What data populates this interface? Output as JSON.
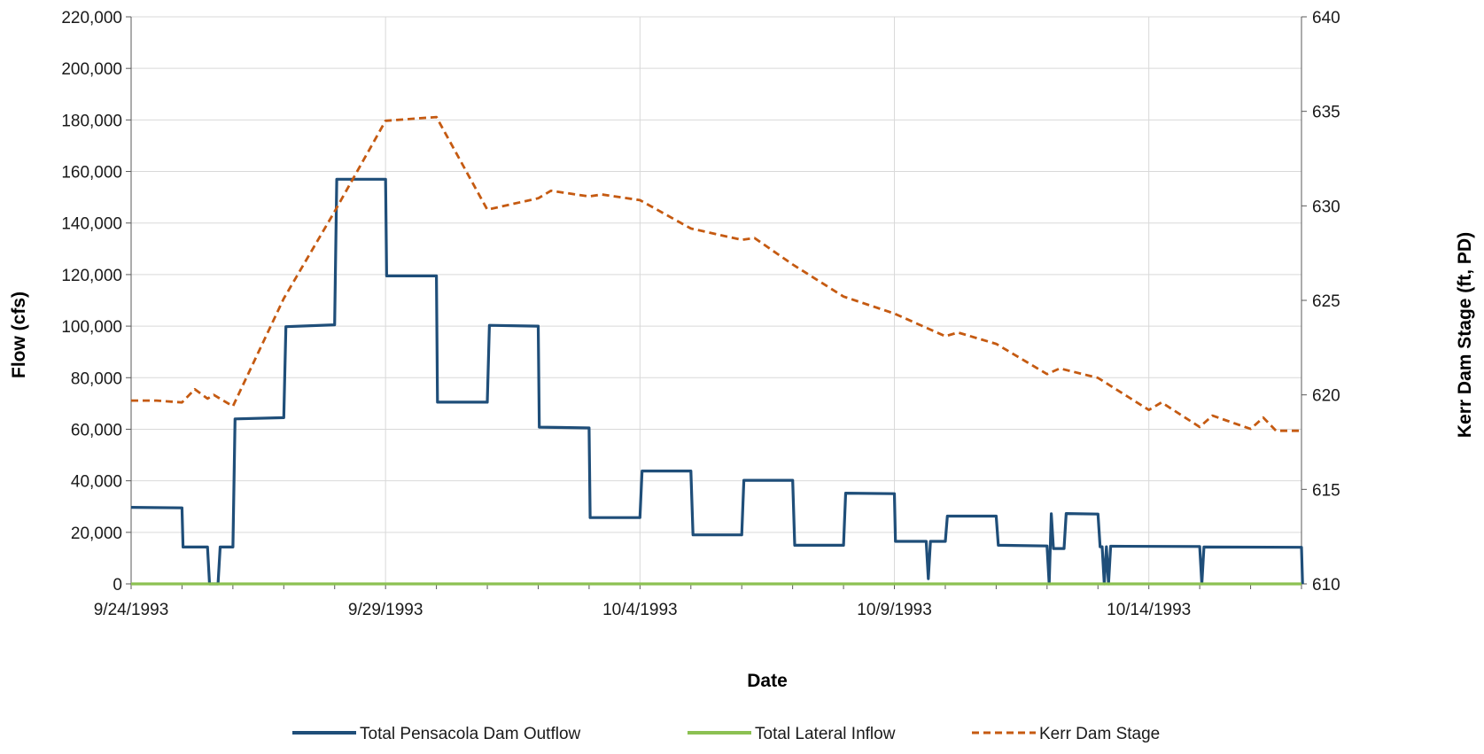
{
  "colors": {
    "outflow": "#1f4e79",
    "lateral": "#8cc152",
    "stage": "#c55a11",
    "grid": "#d9d9d9",
    "axis": "#595959"
  },
  "chart_data": {
    "type": "line",
    "xlabel": "Date",
    "ylabel_left": "Flow (cfs)",
    "ylabel_right": "Kerr Dam Stage (ft, PD)",
    "xlim": [
      "9/24/1993",
      "10/17/1993"
    ],
    "ylim_left": [
      0,
      220000
    ],
    "ylim_right": [
      610,
      640
    ],
    "x_tick_labels": [
      "9/24/1993",
      "9/29/1993",
      "10/4/1993",
      "10/9/1993",
      "10/14/1993"
    ],
    "x_tick_day_offsets_note": "date axis, major labels every 5 days, minor ticks daily",
    "y_left_tick_labels": [
      "0",
      "20,000",
      "40,000",
      "60,000",
      "80,000",
      "100,000",
      "120,000",
      "140,000",
      "160,000",
      "180,000",
      "200,000",
      "220,000"
    ],
    "y_right_tick_labels": [
      "610",
      "615",
      "620",
      "625",
      "630",
      "635",
      "640"
    ],
    "grid": true,
    "legend_position": "bottom",
    "series": [
      {
        "name": "Total Pensacola Dam Outflow",
        "axis": "left",
        "style": "solid",
        "points": [
          [
            "9/24/1993 00:00",
            29700
          ],
          [
            "9/25/1993 00:00",
            29500
          ],
          [
            "9/25/1993 00:30",
            14300
          ],
          [
            "9/25/1993 12:00",
            14300
          ],
          [
            "9/25/1993 13:00",
            0
          ],
          [
            "9/25/1993 17:00",
            0
          ],
          [
            "9/25/1993 18:00",
            14300
          ],
          [
            "9/26/1993 00:00",
            14300
          ],
          [
            "9/26/1993 01:00",
            64000
          ],
          [
            "9/27/1993 00:00",
            64500
          ],
          [
            "9/27/1993 01:00",
            99800
          ],
          [
            "9/28/1993 00:00",
            100500
          ],
          [
            "9/28/1993 01:00",
            157000
          ],
          [
            "9/29/1993 00:00",
            157000
          ],
          [
            "9/29/1993 00:30",
            119500
          ],
          [
            "9/30/1993 00:00",
            119500
          ],
          [
            "9/30/1993 00:30",
            70500
          ],
          [
            "10/1/1993 00:00",
            70500
          ],
          [
            "10/1/1993 01:00",
            100300
          ],
          [
            "10/2/1993 00:00",
            100000
          ],
          [
            "10/2/1993 00:30",
            60800
          ],
          [
            "10/3/1993 00:00",
            60500
          ],
          [
            "10/3/1993 00:30",
            25700
          ],
          [
            "10/4/1993 00:00",
            25700
          ],
          [
            "10/4/1993 01:00",
            43800
          ],
          [
            "10/5/1993 00:00",
            43800
          ],
          [
            "10/5/1993 01:00",
            19000
          ],
          [
            "10/6/1993 00:00",
            19000
          ],
          [
            "10/6/1993 01:00",
            40200
          ],
          [
            "10/7/1993 00:00",
            40200
          ],
          [
            "10/7/1993 01:00",
            15000
          ],
          [
            "10/8/1993 00:00",
            15000
          ],
          [
            "10/8/1993 01:00",
            35200
          ],
          [
            "10/9/1993 00:00",
            35000
          ],
          [
            "10/9/1993 00:30",
            16500
          ],
          [
            "10/9/1993 15:00",
            16500
          ],
          [
            "10/9/1993 16:00",
            2000
          ],
          [
            "10/9/1993 17:00",
            16500
          ],
          [
            "10/10/1993 00:00",
            16500
          ],
          [
            "10/10/1993 01:00",
            26300
          ],
          [
            "10/11/1993 00:00",
            26300
          ],
          [
            "10/11/1993 01:00",
            15000
          ],
          [
            "10/12/1993 00:00",
            14700
          ],
          [
            "10/12/1993 01:00",
            0
          ],
          [
            "10/12/1993 02:00",
            27200
          ],
          [
            "10/12/1993 03:00",
            13700
          ],
          [
            "10/12/1993 08:00",
            13700
          ],
          [
            "10/12/1993 09:00",
            27300
          ],
          [
            "10/13/1993 00:00",
            27100
          ],
          [
            "10/13/1993 01:00",
            14400
          ],
          [
            "10/13/1993 02:00",
            14400
          ],
          [
            "10/13/1993 03:00",
            0
          ],
          [
            "10/13/1993 04:00",
            14400
          ],
          [
            "10/13/1993 05:00",
            0
          ],
          [
            "10/13/1993 06:00",
            14600
          ],
          [
            "10/15/1993 00:00",
            14500
          ],
          [
            "10/15/1993 01:00",
            0
          ],
          [
            "10/15/1993 02:00",
            14300
          ],
          [
            "10/17/1993 00:00",
            14200
          ],
          [
            "10/17/1993 00:30",
            0
          ]
        ]
      },
      {
        "name": "Total Lateral Inflow",
        "axis": "left",
        "style": "solid",
        "points": [
          [
            "9/24/1993 00:00",
            0
          ],
          [
            "10/17/1993 00:00",
            0
          ]
        ]
      },
      {
        "name": "Kerr Dam Stage",
        "axis": "right",
        "style": "dashed",
        "points": [
          [
            "9/24/1993 00:00",
            619.7
          ],
          [
            "9/24/1993 12:00",
            619.7
          ],
          [
            "9/25/1993 00:00",
            619.6
          ],
          [
            "9/25/1993 06:00",
            620.3
          ],
          [
            "9/25/1993 12:00",
            619.8
          ],
          [
            "9/25/1993 15:00",
            620.0
          ],
          [
            "9/26/1993 00:00",
            619.4
          ],
          [
            "9/27/1993 00:00",
            625.1
          ],
          [
            "9/28/1993 00:00",
            629.7
          ],
          [
            "9/29/1993 00:00",
            634.5
          ],
          [
            "9/30/1993 00:00",
            634.7
          ],
          [
            "10/1/1993 00:00",
            629.8
          ],
          [
            "10/2/1993 00:00",
            630.4
          ],
          [
            "10/2/1993 06:00",
            630.8
          ],
          [
            "10/3/1993 00:00",
            630.5
          ],
          [
            "10/3/1993 06:00",
            630.6
          ],
          [
            "10/4/1993 00:00",
            630.3
          ],
          [
            "10/5/1993 00:00",
            628.8
          ],
          [
            "10/6/1993 00:00",
            628.2
          ],
          [
            "10/6/1993 06:00",
            628.3
          ],
          [
            "10/7/1993 00:00",
            626.9
          ],
          [
            "10/8/1993 00:00",
            625.2
          ],
          [
            "10/9/1993 00:00",
            624.3
          ],
          [
            "10/10/1993 00:00",
            623.1
          ],
          [
            "10/10/1993 06:00",
            623.3
          ],
          [
            "10/11/1993 00:00",
            622.7
          ],
          [
            "10/12/1993 00:00",
            621.1
          ],
          [
            "10/12/1993 06:00",
            621.4
          ],
          [
            "10/13/1993 00:00",
            620.9
          ],
          [
            "10/14/1993 00:00",
            619.2
          ],
          [
            "10/14/1993 06:00",
            619.6
          ],
          [
            "10/15/1993 00:00",
            618.3
          ],
          [
            "10/15/1993 06:00",
            618.9
          ],
          [
            "10/16/1993 00:00",
            618.2
          ],
          [
            "10/16/1993 06:00",
            618.8
          ],
          [
            "10/16/1993 12:00",
            618.1
          ],
          [
            "10/17/1993 00:00",
            618.1
          ]
        ]
      }
    ]
  }
}
